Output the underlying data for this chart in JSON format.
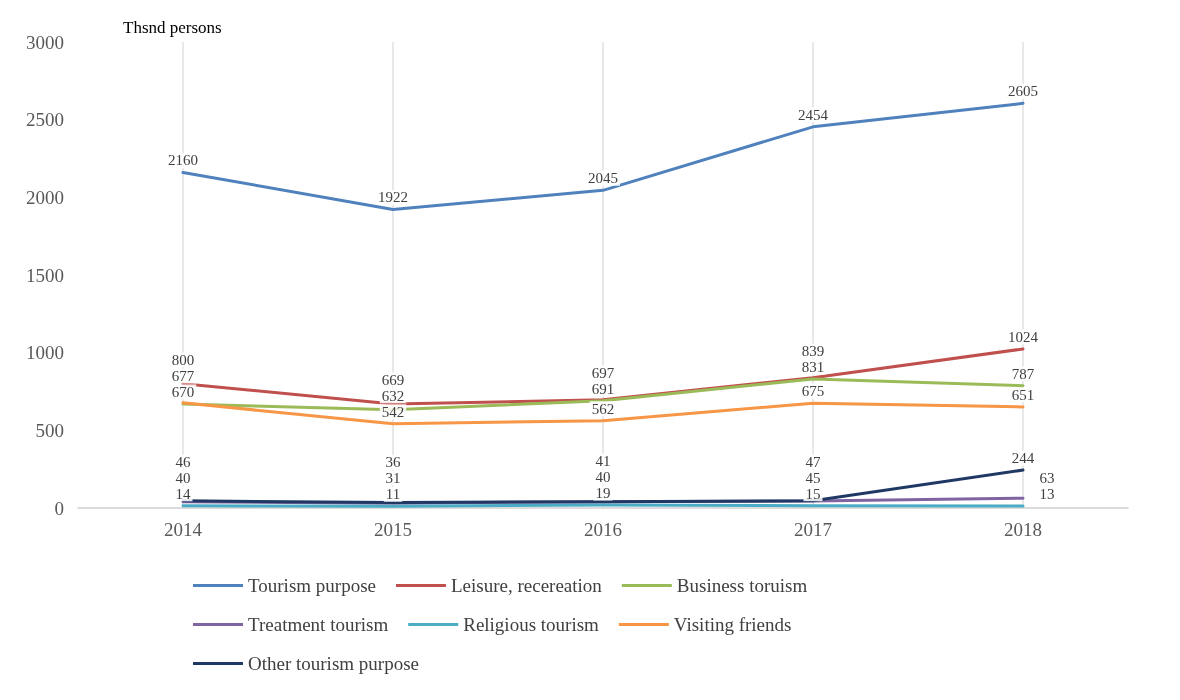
{
  "chart_data": {
    "type": "line",
    "ylabel": "Thsnd persons",
    "categories": [
      "2014",
      "2015",
      "2016",
      "2017",
      "2018"
    ],
    "ylim": [
      0,
      3000
    ],
    "yticks": [
      0,
      500,
      1000,
      1500,
      2000,
      2500,
      3000
    ],
    "grid": "x",
    "legend": "bottom",
    "data_labels": true,
    "marker": "none",
    "line_style": "solid",
    "series": [
      {
        "name": "Tourism purpose",
        "color": "#4f81bd",
        "values": [
          2160,
          1922,
          2045,
          2454,
          2605
        ]
      },
      {
        "name": "Leisure, recereation",
        "color": "#c0504d",
        "values": [
          800,
          669,
          697,
          839,
          1024
        ]
      },
      {
        "name": "Business toruism",
        "color": "#9bbb59",
        "values": [
          670,
          632,
          691,
          831,
          787
        ]
      },
      {
        "name": "Treatment tourism",
        "color": "#8064a2",
        "values": [
          40,
          31,
          41,
          45,
          63
        ]
      },
      {
        "name": "Religious tourism",
        "color": "#4bacc6",
        "values": [
          14,
          11,
          19,
          15,
          13
        ]
      },
      {
        "name": "Visiting friends",
        "color": "#f79646",
        "values": [
          677,
          542,
          562,
          675,
          651
        ]
      },
      {
        "name": "Other tourism purpose",
        "color": "#1f3864",
        "values": [
          46,
          36,
          40,
          47,
          244
        ]
      }
    ]
  }
}
